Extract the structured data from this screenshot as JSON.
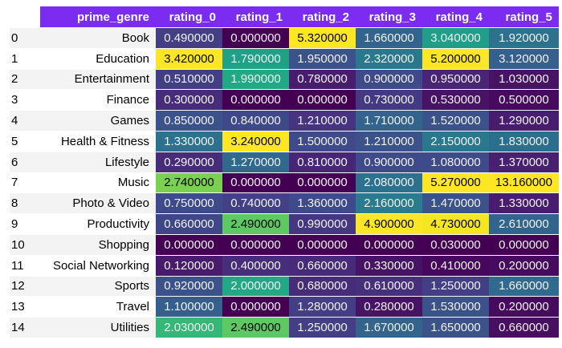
{
  "table": {
    "columns": [
      "prime_genre",
      "rating_0",
      "rating_1",
      "rating_2",
      "rating_3",
      "rating_4",
      "rating_5"
    ],
    "rows": [
      {
        "index": "0",
        "genre": "Book",
        "values": [
          "0.490000",
          "0.000000",
          "5.320000",
          "1.660000",
          "3.040000",
          "1.920000"
        ],
        "colors": [
          "#433e85",
          "#440154",
          "#fde725",
          "#32648e",
          "#1f9e89",
          "#2c728e"
        ]
      },
      {
        "index": "1",
        "genre": "Education",
        "values": [
          "3.420000",
          "1.790000",
          "1.950000",
          "2.320000",
          "5.200000",
          "3.120000"
        ],
        "colors": [
          "#fde725",
          "#1fa187",
          "#3b528b",
          "#2a788e",
          "#fde725",
          "#355f8d"
        ]
      },
      {
        "index": "2",
        "genre": "Entertainment",
        "values": [
          "0.510000",
          "1.990000",
          "0.780000",
          "0.900000",
          "0.950000",
          "1.030000"
        ],
        "colors": [
          "#433e85",
          "#22a884",
          "#481d6f",
          "#3e4a89",
          "#482576",
          "#471365"
        ]
      },
      {
        "index": "3",
        "genre": "Finance",
        "values": [
          "0.300000",
          "0.000000",
          "0.000000",
          "0.730000",
          "0.530000",
          "0.500000"
        ],
        "colors": [
          "#472c7a",
          "#440154",
          "#440154",
          "#443983",
          "#471365",
          "#460b5e"
        ]
      },
      {
        "index": "4",
        "genre": "Games",
        "values": [
          "0.850000",
          "0.840000",
          "1.210000",
          "1.710000",
          "1.520000",
          "1.290000"
        ],
        "colors": [
          "#3b528b",
          "#3e4989",
          "#463480",
          "#32648e",
          "#3b528b",
          "#481d6f"
        ]
      },
      {
        "index": "5",
        "genre": "Health & Fitness",
        "values": [
          "1.330000",
          "3.240000",
          "1.500000",
          "1.210000",
          "2.150000",
          "1.830000"
        ],
        "colors": [
          "#2c728e",
          "#fde725",
          "#3e4a89",
          "#3b528b",
          "#2a788e",
          "#2a6f8e"
        ]
      },
      {
        "index": "6",
        "genre": "Lifestyle",
        "values": [
          "0.290000",
          "1.270000",
          "0.810000",
          "0.900000",
          "1.080000",
          "1.370000"
        ],
        "colors": [
          "#472c7a",
          "#31688e",
          "#482677",
          "#3e4a89",
          "#3e4a89",
          "#482071"
        ]
      },
      {
        "index": "7",
        "genre": "Music",
        "values": [
          "2.740000",
          "0.000000",
          "0.000000",
          "2.080000",
          "5.270000",
          "13.160000"
        ],
        "colors": [
          "#7ad151",
          "#440154",
          "#440154",
          "#2c728e",
          "#fde725",
          "#fde725"
        ]
      },
      {
        "index": "8",
        "genre": "Photo & Video",
        "values": [
          "0.750000",
          "0.740000",
          "1.360000",
          "2.160000",
          "1.470000",
          "1.330000"
        ],
        "colors": [
          "#3e4a89",
          "#424186",
          "#3e4a89",
          "#297b8e",
          "#3b528b",
          "#481d6f"
        ]
      },
      {
        "index": "9",
        "genre": "Productivity",
        "values": [
          "0.660000",
          "2.490000",
          "0.990000",
          "4.900000",
          "4.730000",
          "2.610000"
        ],
        "colors": [
          "#3f4788",
          "#5ec962",
          "#453781",
          "#fde725",
          "#f5e61f",
          "#31658e"
        ]
      },
      {
        "index": "10",
        "genre": "Shopping",
        "values": [
          "0.000000",
          "0.000000",
          "0.000000",
          "0.000000",
          "0.030000",
          "0.000000"
        ],
        "colors": [
          "#440154",
          "#440154",
          "#440154",
          "#440154",
          "#440154",
          "#440154"
        ]
      },
      {
        "index": "11",
        "genre": "Social Networking",
        "values": [
          "0.120000",
          "0.400000",
          "0.660000",
          "0.330000",
          "0.410000",
          "0.200000"
        ],
        "colors": [
          "#481b6d",
          "#472d7b",
          "#472b7a",
          "#471365",
          "#46085c",
          "#460b5e"
        ]
      },
      {
        "index": "12",
        "genre": "Sports",
        "values": [
          "0.920000",
          "2.000000",
          "0.680000",
          "0.610000",
          "1.250000",
          "1.660000"
        ],
        "colors": [
          "#3b528b",
          "#22a884",
          "#472c7a",
          "#46307e",
          "#433e85",
          "#306a8e"
        ]
      },
      {
        "index": "13",
        "genre": "Travel",
        "values": [
          "1.100000",
          "0.000000",
          "1.280000",
          "0.280000",
          "1.530000",
          "0.200000"
        ],
        "colors": [
          "#355f8d",
          "#440154",
          "#433e85",
          "#471365",
          "#3b528b",
          "#460b5e"
        ]
      },
      {
        "index": "14",
        "genre": "Utilities",
        "values": [
          "2.030000",
          "2.490000",
          "1.250000",
          "1.670000",
          "1.650000",
          "0.660000"
        ],
        "colors": [
          "#35b779",
          "#5ec962",
          "#433e85",
          "#32648e",
          "#3b528b",
          "#470e61"
        ]
      }
    ]
  }
}
